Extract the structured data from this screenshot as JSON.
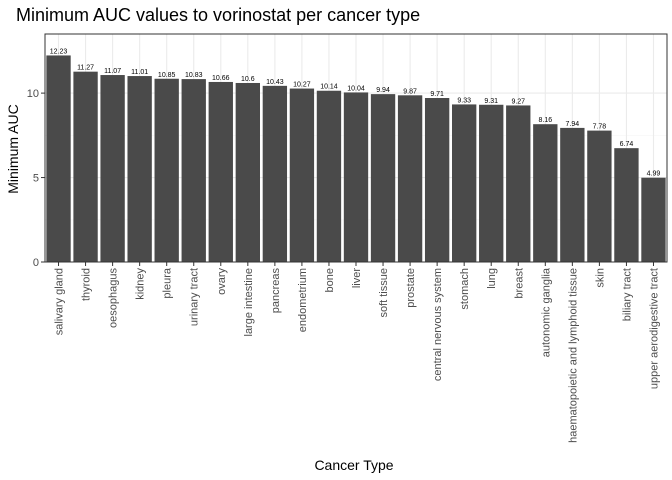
{
  "chart_data": {
    "type": "bar",
    "title": "Minimum AUC values to vorinostat per cancer type",
    "xlabel": "Cancer Type",
    "ylabel": "Minimum AUC",
    "categories": [
      "salivary gland",
      "thyroid",
      "oesophagus",
      "kidney",
      "pleura",
      "urinary tract",
      "ovary",
      "large intestine",
      "pancreas",
      "endometrium",
      "bone",
      "liver",
      "soft tissue",
      "prostate",
      "central nervous system",
      "stomach",
      "lung",
      "breast",
      "autonomic ganglia",
      "haematopoietic and lymphoid tissue",
      "skin",
      "biliary tract",
      "upper aerodigestive tract"
    ],
    "values": [
      12.23,
      11.27,
      11.07,
      11.01,
      10.85,
      10.83,
      10.66,
      10.6,
      10.43,
      10.27,
      10.14,
      10.04,
      9.94,
      9.87,
      9.71,
      9.33,
      9.31,
      9.27,
      8.16,
      7.94,
      7.78,
      6.74,
      4.99
    ],
    "value_labels": [
      "12.23",
      "11.27",
      "11.07",
      "11.01",
      "10.85",
      "10.83",
      "10.66",
      "10.6",
      "10.43",
      "10.27",
      "10.14",
      "10.04",
      "9.94",
      "9.87",
      "9.71",
      "9.33",
      "9.31",
      "9.27",
      "8.16",
      "7.94",
      "7.78",
      "6.74",
      "4.99"
    ],
    "y_ticks": [
      0,
      5,
      10
    ],
    "y_tick_labels": [
      "0",
      "5",
      "10"
    ],
    "ylim": [
      0,
      13.5
    ],
    "grid": true,
    "legend": "none",
    "colors": {
      "bar": "#4a4a4a",
      "panel_border": "#333333",
      "grid_major": "#ebebeb",
      "grid_minor": "#f5f5f5"
    }
  }
}
